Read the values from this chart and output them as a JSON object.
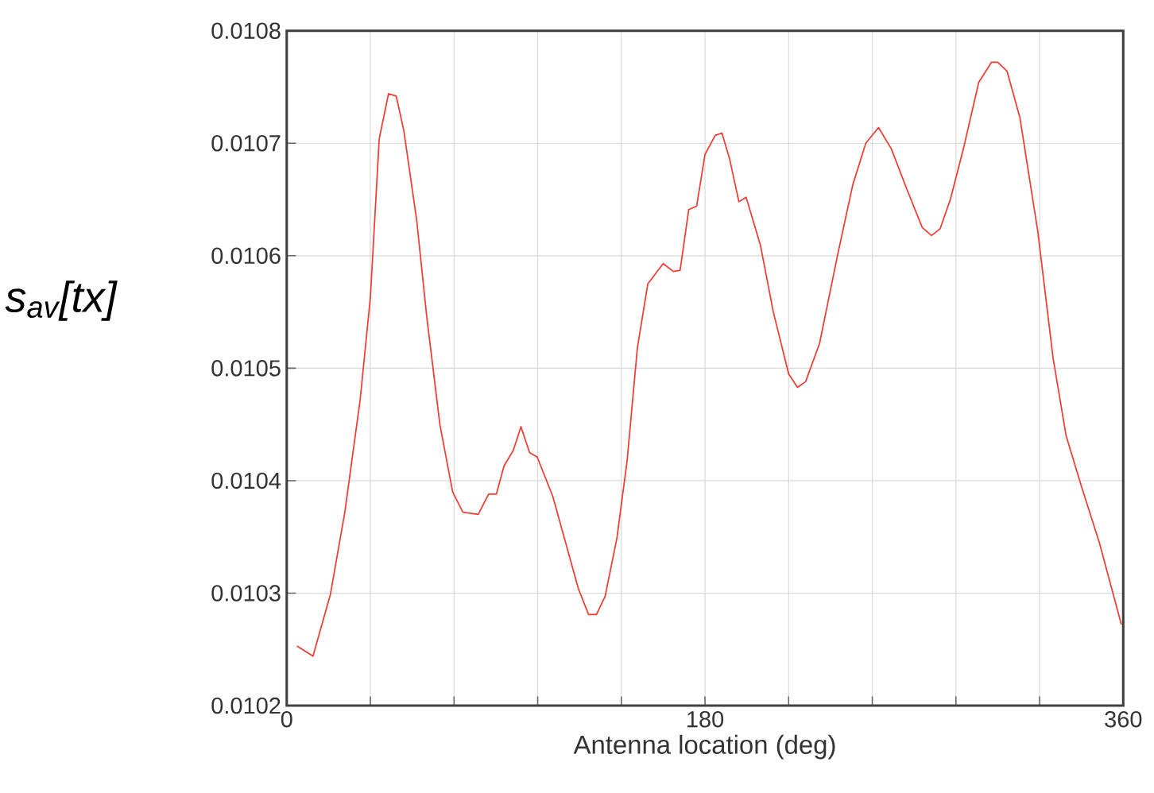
{
  "chart_data": {
    "type": "line",
    "xlabel": "Antenna location (deg)",
    "ylabel": "s$_{av}$[tx]",
    "x": [
      4.4,
      11.3,
      18.8,
      25,
      31.6,
      36,
      39.8,
      43.8,
      47.1,
      50.4,
      55.9,
      60.3,
      65.9,
      71.4,
      75.8,
      82.4,
      86.9,
      90.2,
      93.5,
      97.5,
      100.8,
      104.5,
      107.8,
      114.5,
      120,
      125.5,
      129.9,
      133.3,
      137,
      142.1,
      146.5,
      150.9,
      155.4,
      162,
      166.4,
      169.3,
      173,
      176.4,
      180,
      184.4,
      187.3,
      190.6,
      194.6,
      197.7,
      203.9,
      209.4,
      216,
      219.8,
      223.3,
      229.3,
      237,
      243.6,
      249.2,
      254.7,
      260.2,
      266.9,
      273.5,
      277.5,
      281.2,
      285.6,
      291.2,
      297.8,
      303.3,
      306,
      310,
      315.5,
      323.2,
      329.8,
      335.4,
      342,
      349.7,
      359.2
    ],
    "series": [
      {
        "color": "#f03c32",
        "values": [
          0.010253,
          0.010244,
          0.010299,
          0.010372,
          0.010472,
          0.010563,
          0.010704,
          0.010744,
          0.010742,
          0.010711,
          0.010632,
          0.010545,
          0.01045,
          0.01039,
          0.010372,
          0.01037,
          0.010388,
          0.010388,
          0.010413,
          0.010427,
          0.010448,
          0.010425,
          0.010421,
          0.010386,
          0.010345,
          0.010304,
          0.010281,
          0.010281,
          0.010297,
          0.010349,
          0.010418,
          0.010518,
          0.010575,
          0.010593,
          0.010586,
          0.010587,
          0.010641,
          0.010644,
          0.01069,
          0.010707,
          0.010709,
          0.010686,
          0.010648,
          0.010652,
          0.010609,
          0.01055,
          0.010495,
          0.010483,
          0.010488,
          0.010522,
          0.0106,
          0.010663,
          0.0107,
          0.010714,
          0.010695,
          0.010659,
          0.010625,
          0.010618,
          0.010624,
          0.01065,
          0.010695,
          0.010754,
          0.010772,
          0.010772,
          0.010764,
          0.010723,
          0.010622,
          0.010509,
          0.01044,
          0.010395,
          0.010345,
          0.010272
        ]
      }
    ],
    "xlim": [
      0,
      360
    ],
    "xticks": [
      0,
      {
        "value": 36,
        "label": null
      },
      {
        "value": 72,
        "label": null
      },
      {
        "value": 108,
        "label": null
      },
      {
        "value": 144,
        "label": null
      },
      180,
      {
        "value": 216,
        "label": null
      },
      {
        "value": 252,
        "label": null
      },
      {
        "value": 288,
        "label": null
      },
      {
        "value": 324,
        "label": null
      },
      360
    ],
    "ylim": [
      0.0102,
      0.0108
    ],
    "yticks": [
      0.0102,
      0.0103,
      0.0104,
      0.0105,
      0.0106,
      0.0107,
      0.0108
    ],
    "grid": true,
    "line_style": "solid",
    "marker": "none"
  }
}
